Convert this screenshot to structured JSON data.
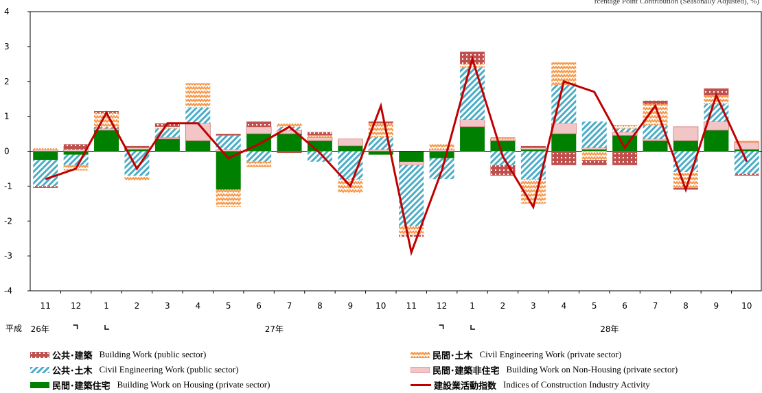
{
  "note": "rcentage Point Contribution (Seasonally Adjusted), %)",
  "colors": {
    "line": "#c00000",
    "public_building": "#c0504d",
    "private_civil": "#f79646",
    "public_civil": "#4bacc6",
    "private_nonhousing": "#f2c6c6",
    "private_housing": "#008000"
  },
  "era_prefix": "平成",
  "year_labels": [
    "26年",
    "27年",
    "28年"
  ],
  "legend": [
    {
      "key": "public_building",
      "jp": "公共･建築",
      "en": "Building Work (public sector)",
      "icon": "dotted-red-swatch"
    },
    {
      "key": "private_civil",
      "jp": "民間･土木",
      "en": "Civil Engineering Work (private sector)",
      "icon": "zigzag-orange-swatch"
    },
    {
      "key": "public_civil",
      "jp": "公共･土木",
      "en": "Civil Engineering Work (public sector)",
      "icon": "diagonal-blue-swatch"
    },
    {
      "key": "private_nonhousing",
      "jp": "民間･建築非住宅",
      "en": "Building Work on Non-Housing (private sector)",
      "icon": "pink-swatch"
    },
    {
      "key": "private_housing",
      "jp": "民間･建築住宅",
      "en": "Building Work on Housing (private sector)",
      "icon": "green-swatch"
    },
    {
      "key": "index",
      "jp": "建設業活動指数",
      "en": "Indices of Construction Industry Activity",
      "icon": "red-line-swatch"
    }
  ],
  "chart_data": {
    "type": "bar",
    "stacked": true,
    "categories": [
      "11",
      "12",
      "1",
      "2",
      "3",
      "4",
      "5",
      "6",
      "7",
      "8",
      "9",
      "10",
      "11",
      "12",
      "1",
      "2",
      "3",
      "4",
      "5",
      "6",
      "7",
      "8",
      "9",
      "10"
    ],
    "year_groups": [
      {
        "label": "26年",
        "months": [
          "11",
          "12"
        ]
      },
      {
        "label": "27年",
        "months": [
          "1",
          "2",
          "3",
          "4",
          "5",
          "6",
          "7",
          "8",
          "9",
          "10",
          "11",
          "12"
        ]
      },
      {
        "label": "28年",
        "months": [
          "1",
          "2",
          "3",
          "4",
          "5",
          "6",
          "7",
          "8",
          "9",
          "10"
        ]
      }
    ],
    "ylim": [
      -4,
      4
    ],
    "yticks": [
      -4,
      -3,
      -2,
      -1,
      0,
      1,
      2,
      3,
      4
    ],
    "series": [
      {
        "key": "private_housing",
        "name": "民間･建築住宅 Building Work on Housing (private sector)",
        "values": [
          -0.25,
          -0.1,
          0.6,
          0.05,
          0.35,
          0.3,
          -1.1,
          0.5,
          0.5,
          0.3,
          0.15,
          -0.1,
          -0.3,
          -0.2,
          0.7,
          0.3,
          0.05,
          0.5,
          0.05,
          0.45,
          0.3,
          0.3,
          0.6,
          0.05
        ]
      },
      {
        "key": "private_nonhousing",
        "name": "民間･建築非住宅 Building Work on Non-Housing (private sector)",
        "values": [
          0.05,
          0.05,
          0.05,
          0.05,
          0.05,
          0.5,
          0.05,
          0.2,
          0.1,
          0.1,
          0.2,
          0.05,
          -0.1,
          0.05,
          0.2,
          0.05,
          0.05,
          0.3,
          0.05,
          0.1,
          0.05,
          0.4,
          0.25,
          0.2
        ]
      },
      {
        "key": "public_civil",
        "name": "公共･土木 Civil Engineering Work (public sector)",
        "values": [
          -0.75,
          -0.3,
          0.05,
          -0.7,
          0.25,
          0.45,
          0.4,
          -0.3,
          0.1,
          -0.3,
          -0.8,
          0.35,
          -1.75,
          -0.6,
          1.5,
          -0.4,
          -0.8,
          1.1,
          0.75,
          0.1,
          0.4,
          -0.6,
          0.5,
          -0.65
        ]
      },
      {
        "key": "private_civil",
        "name": "民間･土木 Civil Engineering Work (private sector)",
        "values": [
          0.05,
          -0.15,
          0.4,
          -0.15,
          0.05,
          0.7,
          -0.5,
          -0.15,
          0.1,
          0.05,
          -0.4,
          0.4,
          -0.25,
          0.15,
          0.1,
          0.05,
          -0.7,
          0.65,
          -0.25,
          0.1,
          0.6,
          -0.45,
          0.25,
          0.05
        ]
      },
      {
        "key": "public_building",
        "name": "公共･建築 Building Work (public sector)",
        "values": [
          -0.05,
          0.15,
          0.05,
          0.05,
          0.1,
          0.0,
          0.05,
          0.15,
          -0.05,
          0.1,
          0.0,
          0.05,
          -0.05,
          0.0,
          0.35,
          -0.3,
          0.05,
          -0.4,
          -0.15,
          -0.4,
          0.1,
          -0.05,
          0.2,
          -0.05
        ]
      }
    ],
    "line": {
      "key": "index",
      "name": "建設業活動指数 Indices of Construction Industry Activity",
      "values": [
        -0.8,
        -0.5,
        1.1,
        -0.5,
        0.8,
        0.8,
        -0.2,
        0.2,
        0.7,
        -0.05,
        -1.0,
        1.3,
        -2.9,
        -0.55,
        2.65,
        -0.15,
        -1.6,
        2.0,
        1.7,
        0.1,
        1.3,
        -1.1,
        1.6,
        -0.3
      ]
    }
  }
}
